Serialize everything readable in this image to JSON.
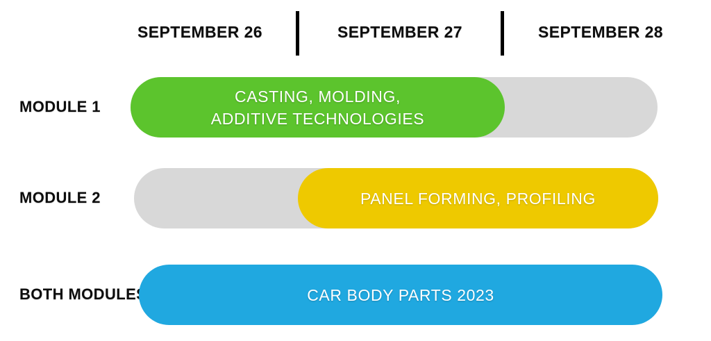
{
  "chart_data": {
    "type": "bar",
    "subtype": "gantt-timeline",
    "title": "",
    "x_categories": [
      "SEPTEMBER 26",
      "SEPTEMBER 27",
      "SEPTEMBER 28"
    ],
    "axis_position": "top",
    "grid": "day-dividers",
    "legend": "none",
    "rows": [
      {
        "label": "MODULE 1",
        "bar_label": "CASTING, MOLDING, ADDITIVE TECHNOLOGIES",
        "bar_label_lines": [
          "CASTING, MOLDING,",
          "ADDITIVE TECHNOLOGIES"
        ],
        "active_days": [
          "SEPTEMBER 26",
          "SEPTEMBER 27"
        ],
        "span_day_start": 0,
        "span_day_end": 2,
        "bar_color": "#5cc42d",
        "track_color": "#d8d8d8",
        "track_day_start": 0,
        "track_day_end": 3
      },
      {
        "label": "MODULE 2",
        "bar_label": "PANEL FORMING, PROFILING",
        "active_days": [
          "SEPTEMBER 27",
          "SEPTEMBER 28"
        ],
        "span_day_start": 1,
        "span_day_end": 3,
        "bar_color": "#eec900",
        "track_color": "#d8d8d8",
        "track_day_start": 0,
        "track_day_end": 3
      },
      {
        "label": "BOTH MODULES",
        "bar_label": "CAR BODY PARTS 2023",
        "active_days": [
          "SEPTEMBER 26",
          "SEPTEMBER 27",
          "SEPTEMBER 28"
        ],
        "span_day_start": 0,
        "span_day_end": 3,
        "bar_color": "#20a8e0",
        "track_color": null
      }
    ],
    "colors": {
      "module1_green": "#5cc42d",
      "module2_yellow": "#eec900",
      "both_modules_blue": "#20a8e0",
      "track_gray": "#d8d8d8",
      "divider_black": "#000000",
      "bar_text_white": "#ffffff",
      "label_text_black": "#0d0d0d",
      "background_white": "#ffffff"
    }
  }
}
